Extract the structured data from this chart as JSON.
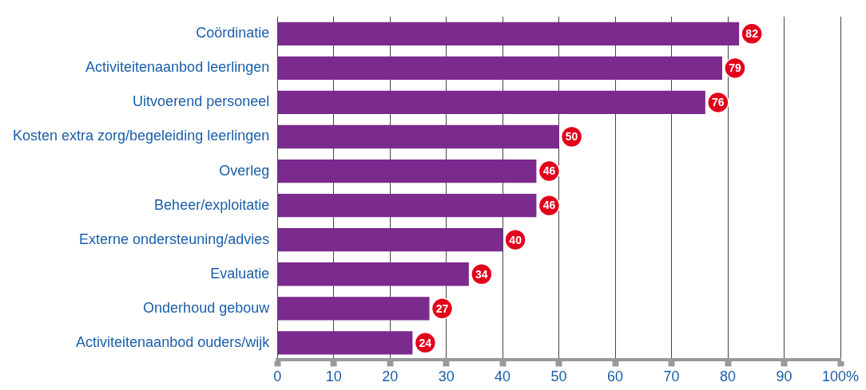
{
  "chart_data": {
    "type": "bar",
    "orientation": "horizontal",
    "categories": [
      "Coördinatie",
      "Activiteitenaanbod leerlingen",
      "Uitvoerend personeel",
      "Kosten extra zorg/begeleiding leerlingen",
      "Overleg",
      "Beheer/exploitatie",
      "Externe ondersteuning/advies",
      "Evaluatie",
      "Onderhoud gebouw",
      "Activiteitenaanbod ouders/wijk"
    ],
    "values": [
      82,
      79,
      76,
      50,
      46,
      46,
      40,
      34,
      27,
      24
    ],
    "color": "#7b2a8e",
    "xlim": [
      0,
      100
    ],
    "xticks": [
      0,
      10,
      20,
      30,
      40,
      50,
      60,
      70,
      80,
      90,
      {
        "value": 100,
        "label": "100%"
      }
    ],
    "grid": "x",
    "legend": false,
    "data_labels": true
  }
}
